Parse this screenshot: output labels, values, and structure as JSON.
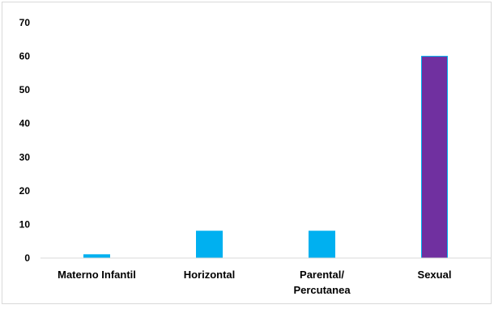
{
  "chart_data": {
    "type": "bar",
    "title": "",
    "xlabel": "",
    "ylabel": "",
    "categories": [
      [
        "Materno Infantil"
      ],
      [
        "Horizontal"
      ],
      [
        "Parental/",
        "Percutanea"
      ],
      [
        "Sexual"
      ]
    ],
    "values": [
      1,
      8,
      8,
      60
    ],
    "bar_colors": [
      "#00b0f0",
      "#00b0f0",
      "#00b0f0",
      "#7030a0"
    ],
    "bar_outline": "#00b0f0",
    "ylim": [
      0,
      70
    ],
    "yticks": [
      0,
      10,
      20,
      30,
      40,
      50,
      60,
      70
    ],
    "grid": false,
    "legend": false
  }
}
